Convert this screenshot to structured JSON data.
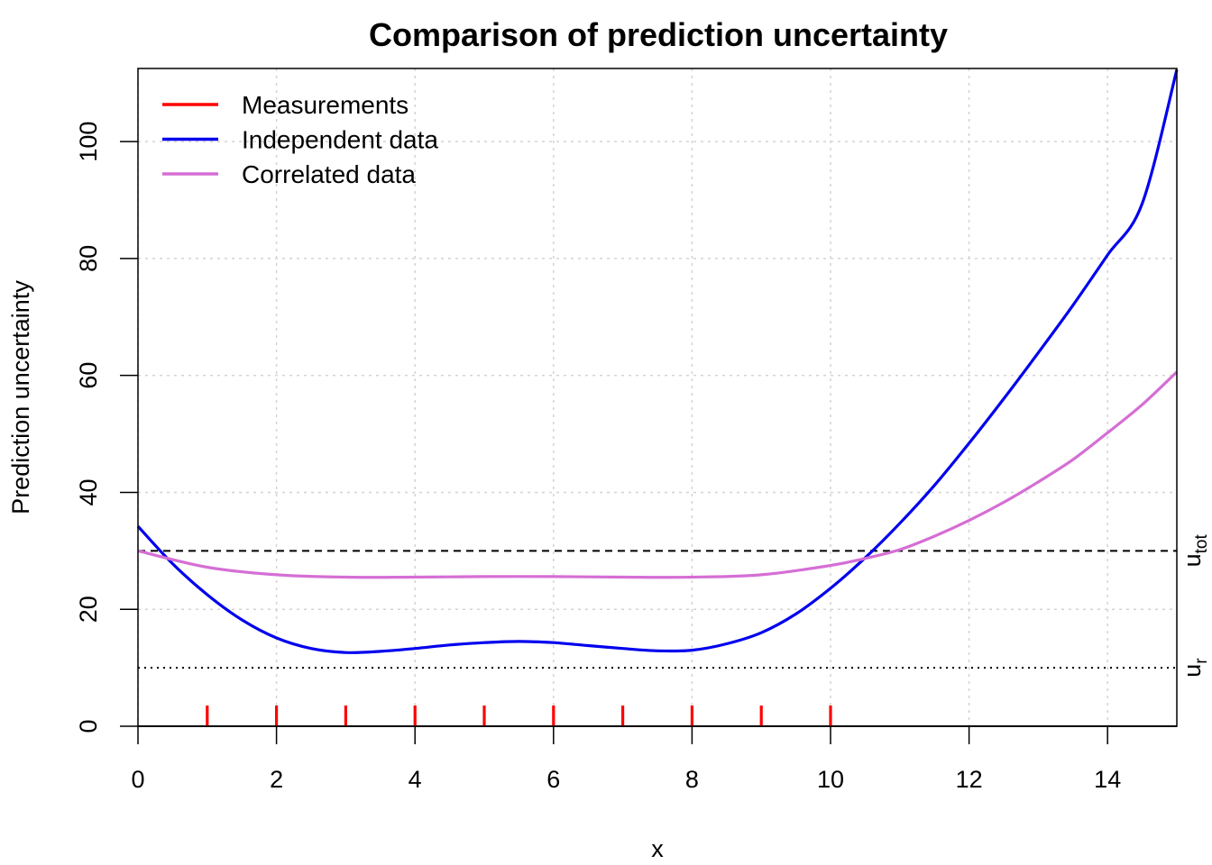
{
  "chart_data": {
    "type": "line",
    "title": "Comparison of prediction uncertainty",
    "xlabel": "x",
    "ylabel": "Prediction uncertainty",
    "xlim": [
      0,
      15
    ],
    "ylim": [
      0,
      112.5
    ],
    "x_ticks": [
      0,
      2,
      4,
      6,
      8,
      10,
      12,
      14
    ],
    "y_ticks": [
      0,
      20,
      40,
      60,
      80,
      100
    ],
    "grid": true,
    "legend_position": "top-left",
    "series": [
      {
        "name": "Independent data",
        "color": "#0000ee",
        "x": [
          0,
          0.5,
          1,
          1.5,
          2,
          2.5,
          3,
          3.5,
          4,
          4.5,
          5,
          5.5,
          6,
          6.5,
          7,
          7.5,
          8,
          8.5,
          9,
          9.5,
          10,
          10.5,
          11,
          11.5,
          12,
          12.5,
          13,
          13.5,
          14,
          14.5,
          15
        ],
        "y": [
          34.2,
          27.8,
          22.5,
          18.2,
          15.1,
          13.3,
          12.6,
          12.8,
          13.3,
          13.9,
          14.3,
          14.5,
          14.3,
          13.8,
          13.3,
          12.9,
          13.0,
          14.1,
          16.0,
          19.2,
          23.6,
          28.8,
          34.7,
          41.2,
          48.4,
          56.0,
          63.9,
          72.0,
          80.6,
          89.4,
          112.3
        ]
      },
      {
        "name": "Correlated data",
        "color": "#d56ed5",
        "x": [
          0,
          1,
          2,
          3,
          4,
          5,
          6,
          7,
          8,
          9,
          10,
          10.5,
          11,
          11.5,
          12,
          12.5,
          13,
          13.5,
          14,
          14.5,
          15
        ],
        "y": [
          30.0,
          27.2,
          25.9,
          25.5,
          25.5,
          25.6,
          25.6,
          25.5,
          25.5,
          25.9,
          27.5,
          28.7,
          30.2,
          32.5,
          35.2,
          38.3,
          41.8,
          45.6,
          50.2,
          55.0,
          60.6
        ]
      }
    ],
    "measurements": {
      "name": "Measurements",
      "color": "#ff0000",
      "x": [
        1,
        2,
        3,
        4,
        5,
        6,
        7,
        8,
        9,
        10
      ]
    },
    "reference_lines": [
      {
        "label": "u",
        "subscript": "tot",
        "y": 30,
        "style": "dashed",
        "color": "#000000"
      },
      {
        "label": "u",
        "subscript": "r",
        "y": 10,
        "style": "dotted",
        "color": "#000000"
      }
    ]
  }
}
